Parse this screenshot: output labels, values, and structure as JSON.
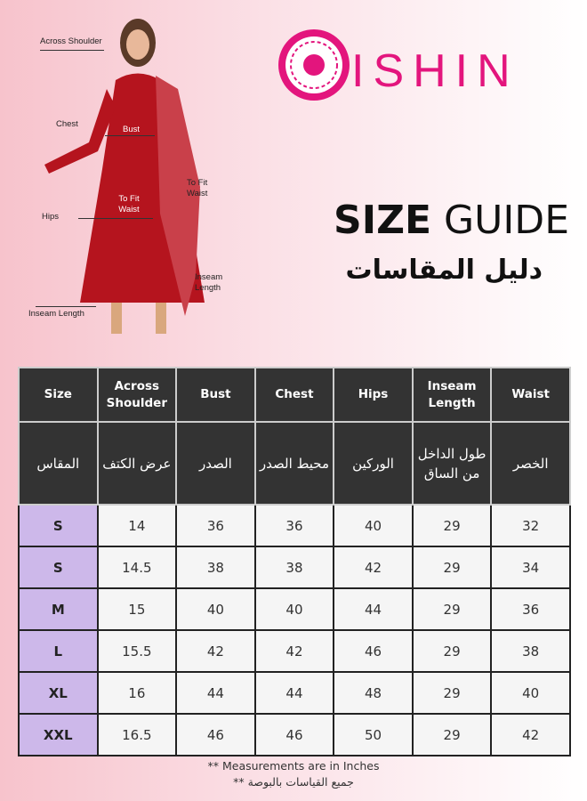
{
  "figure": {
    "labels": {
      "across_shoulder": "Across Shoulder",
      "chest": "Chest",
      "bust": "Bust",
      "to_fit_waist_inner": "To Fit Waist",
      "to_fit_waist_side": "To Fit Waist",
      "hips": "Hips",
      "inseam_side": "Inseam Length",
      "inseam_bottom": "Inseam Length"
    }
  },
  "brand": {
    "name": "ISHIN",
    "color": "#e3157d"
  },
  "title": {
    "bold": "SIZE",
    "regular": " GUIDE",
    "arabic": "دليل المقاسات"
  },
  "table": {
    "headers_en": [
      "Size",
      "Across Shoulder",
      "Bust",
      "Chest",
      "Hips",
      "Inseam Length",
      "Waist"
    ],
    "headers_ar": [
      "المقاس",
      "عرض الكتف",
      "الصدر",
      "محيط الصدر",
      "الوركين",
      "طول الداخل من الساق",
      "الخصر"
    ],
    "rows": [
      [
        "S",
        "14",
        "36",
        "36",
        "40",
        "29",
        "32"
      ],
      [
        "S",
        "14.5",
        "38",
        "38",
        "42",
        "29",
        "34"
      ],
      [
        "M",
        "15",
        "40",
        "40",
        "44",
        "29",
        "36"
      ],
      [
        "L",
        "15.5",
        "42",
        "42",
        "46",
        "29",
        "38"
      ],
      [
        "XL",
        "16",
        "44",
        "44",
        "48",
        "29",
        "40"
      ],
      [
        "XXL",
        "16.5",
        "46",
        "46",
        "50",
        "29",
        "42"
      ]
    ],
    "size_cell_color": "#cdb8ea",
    "header_color": "#333333"
  },
  "notes": {
    "en": "** Measurements are in Inches",
    "ar": "** جميع القياسات بالبوصة"
  }
}
